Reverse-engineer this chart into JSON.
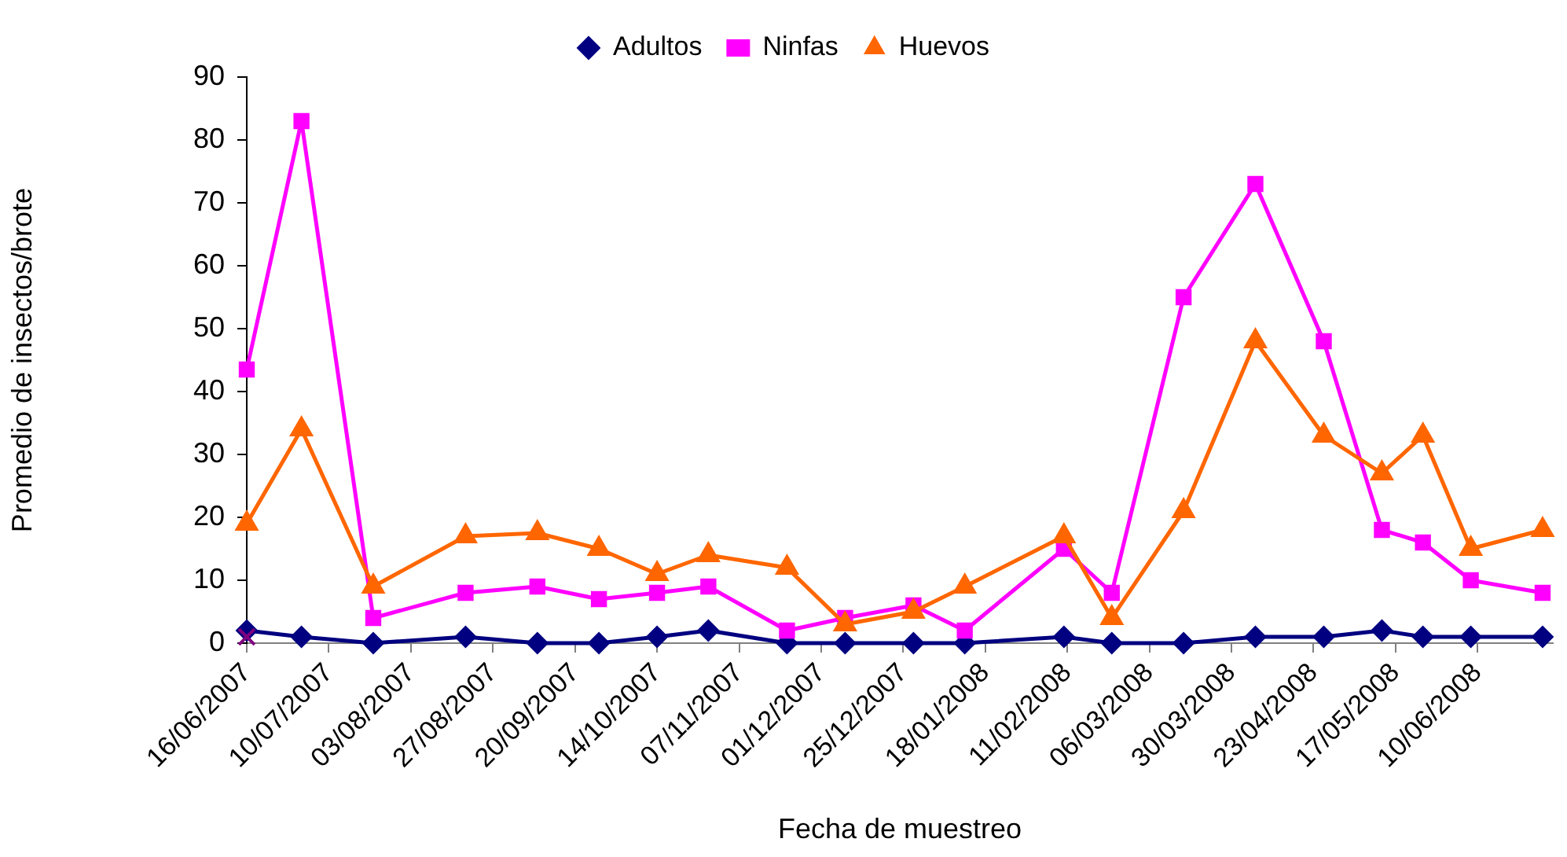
{
  "chart_data": {
    "type": "line",
    "xlabel": "Fecha de muestreo",
    "ylabel": "Promedio de insectos/brote",
    "x": [
      "2007-06-16",
      "2007-07-02",
      "2007-07-23",
      "2007-08-19",
      "2007-09-09",
      "2007-09-27",
      "2007-10-14",
      "2007-10-29",
      "2007-11-21",
      "2007-12-08",
      "2007-12-28",
      "2008-01-12",
      "2008-02-10",
      "2008-02-24",
      "2008-03-16",
      "2008-04-06",
      "2008-04-26",
      "2008-05-13",
      "2008-05-25",
      "2008-06-08",
      "2008-06-29"
    ],
    "series": [
      {
        "name": "Adultos",
        "color": "#000080",
        "marker": "diamond",
        "values": [
          2,
          1,
          0,
          1,
          0,
          0,
          1,
          2,
          0,
          0,
          0,
          0,
          1,
          0,
          0,
          1,
          1,
          2,
          1,
          1,
          1
        ]
      },
      {
        "name": "Ninfas",
        "color": "#ff00ff",
        "marker": "square",
        "values": [
          43.5,
          83,
          4,
          8,
          9,
          7,
          8,
          9,
          2,
          4,
          6,
          2,
          15,
          8,
          55,
          73,
          48,
          18,
          16,
          10,
          8
        ]
      },
      {
        "name": "Huevos",
        "color": "#ff6600",
        "marker": "triangle",
        "values": [
          19,
          34,
          9,
          17,
          17.5,
          15,
          11,
          14,
          12,
          3,
          5,
          9,
          17,
          4,
          21,
          48,
          33,
          27,
          33,
          15,
          18
        ]
      },
      {
        "color": "#800080",
        "marker": "cross",
        "x": [
          "2007-06-16"
        ],
        "values": [
          1
        ]
      }
    ],
    "xlim": [
      "2007-06-16",
      "2008-07-02"
    ],
    "xticks": [
      {
        "value": "2007-06-16",
        "label": "16/06/2007"
      },
      {
        "value": "2007-07-10",
        "label": "10/07/2007"
      },
      {
        "value": "2007-08-03",
        "label": "03/08/2007"
      },
      {
        "value": "2007-08-27",
        "label": "27/08/2007"
      },
      {
        "value": "2007-09-20",
        "label": "20/09/2007"
      },
      {
        "value": "2007-10-14",
        "label": "14/10/2007"
      },
      {
        "value": "2007-11-07",
        "label": "07/11/2007"
      },
      {
        "value": "2007-12-01",
        "label": "01/12/2007"
      },
      {
        "value": "2007-12-25",
        "label": "25/12/2007"
      },
      {
        "value": "2008-01-18",
        "label": "18/01/2008"
      },
      {
        "value": "2008-02-11",
        "label": "11/02/2008"
      },
      {
        "value": "2008-03-06",
        "label": "06/03/2008"
      },
      {
        "value": "2008-03-30",
        "label": "30/03/2008"
      },
      {
        "value": "2008-04-23",
        "label": "23/04/2008"
      },
      {
        "value": "2008-05-17",
        "label": "17/05/2008"
      },
      {
        "value": "2008-06-10",
        "label": "10/06/2008"
      }
    ],
    "ylim": [
      0,
      90
    ],
    "yticks": [
      0,
      10,
      20,
      30,
      40,
      50,
      60,
      70,
      80,
      90
    ],
    "grid": false,
    "legend": "top",
    "line_style": "solid"
  }
}
